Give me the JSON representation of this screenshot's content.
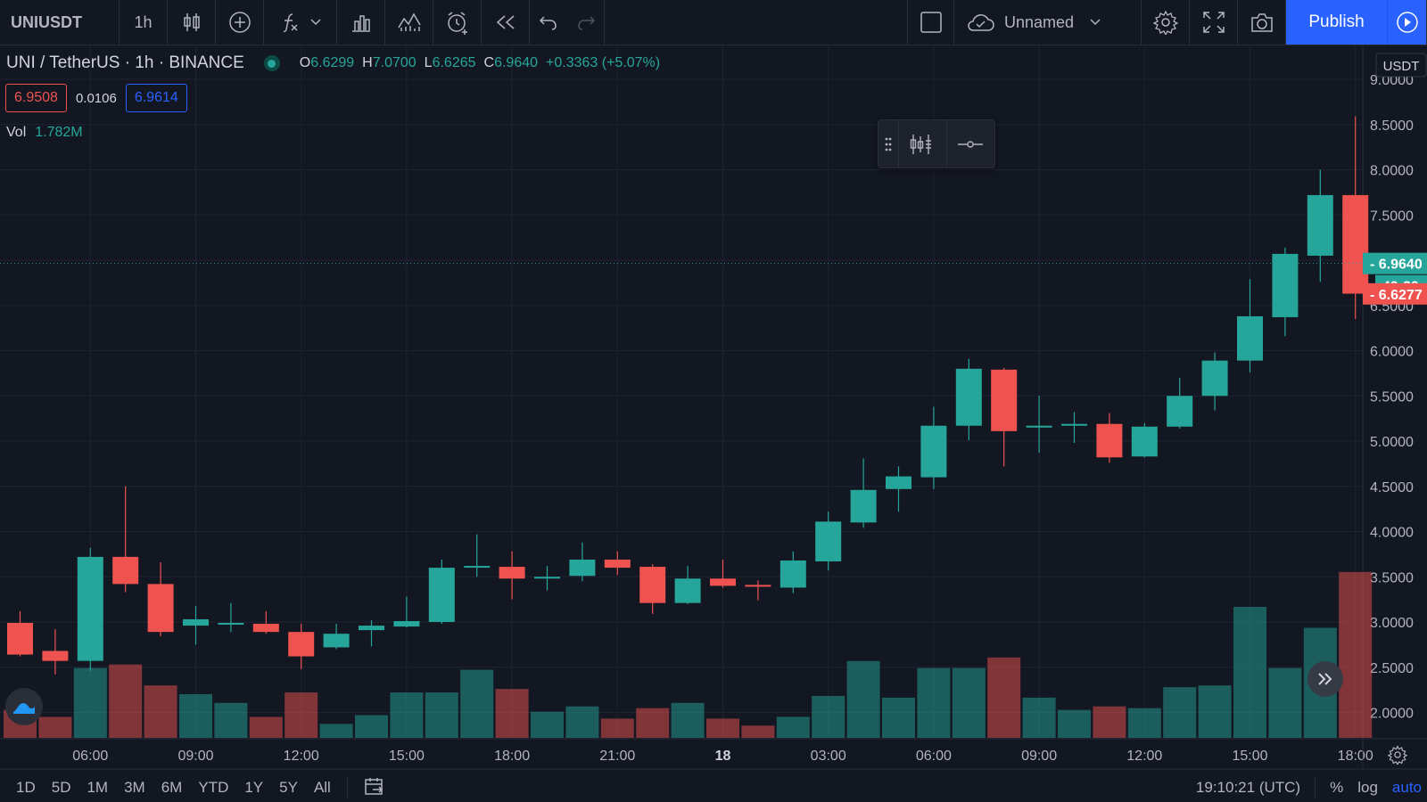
{
  "toolbar": {
    "symbol": "UNIUSDT",
    "interval": "1h",
    "layout_name": "Unnamed",
    "publish_label": "Publish"
  },
  "legend": {
    "title": "UNI / TetherUS · 1h · BINANCE",
    "o_label": "O",
    "o": "6.6299",
    "h_label": "H",
    "h": "7.0700",
    "l_label": "L",
    "l": "6.6265",
    "c_label": "C",
    "c": "6.9640",
    "change": "+0.3363 (+5.07%)",
    "sell_price": "6.9508",
    "spread": "0.0106",
    "buy_price": "6.9614",
    "vol_label": "Vol",
    "vol_value": "1.782M"
  },
  "bottom": {
    "timeframes": [
      "1D",
      "5D",
      "1M",
      "3M",
      "6M",
      "YTD",
      "1Y",
      "5Y",
      "All"
    ],
    "clock": "19:10:21 (UTC)",
    "percent": "%",
    "log": "log",
    "auto": "auto"
  },
  "colors": {
    "up": "#26a69a",
    "down": "#ef5350",
    "background": "#131722",
    "grid": "#1f2330",
    "accent": "#2962ff"
  },
  "chart_data": {
    "type": "candlestick",
    "currency": "USDT",
    "y_ticks": [
      9.0,
      8.5,
      8.0,
      7.5,
      7.0,
      6.5,
      6.0,
      5.5,
      5.0,
      4.5,
      4.0,
      3.5,
      3.0,
      2.5,
      2.0
    ],
    "y_tick_labels": [
      "9.0000",
      "8.5000",
      "8.0000",
      "7.5000",
      "7.0000",
      "6.5000",
      "6.0000",
      "5.5000",
      "5.0000",
      "4.5000",
      "4.0000",
      "3.5000",
      "3.0000",
      "2.5000",
      "2.0000"
    ],
    "x_tick_labels": [
      {
        "index": 2,
        "label": "06:00"
      },
      {
        "index": 5,
        "label": "09:00"
      },
      {
        "index": 8,
        "label": "12:00"
      },
      {
        "index": 11,
        "label": "15:00"
      },
      {
        "index": 14,
        "label": "18:00"
      },
      {
        "index": 17,
        "label": "21:00"
      },
      {
        "index": 20,
        "label": "18"
      },
      {
        "index": 23,
        "label": "03:00"
      },
      {
        "index": 26,
        "label": "06:00"
      },
      {
        "index": 29,
        "label": "09:00"
      },
      {
        "index": 32,
        "label": "12:00"
      },
      {
        "index": 35,
        "label": "15:00"
      },
      {
        "index": 38,
        "label": "18:00"
      }
    ],
    "candles": [
      {
        "o": 2.99,
        "h": 3.12,
        "l": 2.62,
        "c": 2.64
      },
      {
        "o": 2.68,
        "h": 2.92,
        "l": 2.42,
        "c": 2.57
      },
      {
        "o": 2.57,
        "h": 3.82,
        "l": 2.46,
        "c": 3.72
      },
      {
        "o": 3.72,
        "h": 4.5,
        "l": 3.33,
        "c": 3.42
      },
      {
        "o": 3.42,
        "h": 3.66,
        "l": 2.84,
        "c": 2.89
      },
      {
        "o": 2.96,
        "h": 3.18,
        "l": 2.75,
        "c": 3.03
      },
      {
        "o": 2.98,
        "h": 3.21,
        "l": 2.89,
        "c": 2.99
      },
      {
        "o": 2.98,
        "h": 3.12,
        "l": 2.87,
        "c": 2.89
      },
      {
        "o": 2.89,
        "h": 2.98,
        "l": 2.48,
        "c": 2.62
      },
      {
        "o": 2.72,
        "h": 2.98,
        "l": 2.7,
        "c": 2.87
      },
      {
        "o": 2.91,
        "h": 3.02,
        "l": 2.73,
        "c": 2.96
      },
      {
        "o": 2.95,
        "h": 3.28,
        "l": 2.94,
        "c": 3.01
      },
      {
        "o": 3.0,
        "h": 3.69,
        "l": 2.98,
        "c": 3.6
      },
      {
        "o": 3.6,
        "h": 3.97,
        "l": 3.5,
        "c": 3.62
      },
      {
        "o": 3.61,
        "h": 3.78,
        "l": 3.25,
        "c": 3.48
      },
      {
        "o": 3.49,
        "h": 3.62,
        "l": 3.35,
        "c": 3.5
      },
      {
        "o": 3.51,
        "h": 3.88,
        "l": 3.45,
        "c": 3.69
      },
      {
        "o": 3.69,
        "h": 3.78,
        "l": 3.52,
        "c": 3.6
      },
      {
        "o": 3.61,
        "h": 3.64,
        "l": 3.09,
        "c": 3.21
      },
      {
        "o": 3.21,
        "h": 3.62,
        "l": 3.2,
        "c": 3.48
      },
      {
        "o": 3.48,
        "h": 3.69,
        "l": 3.38,
        "c": 3.4
      },
      {
        "o": 3.41,
        "h": 3.46,
        "l": 3.24,
        "c": 3.39
      },
      {
        "o": 3.38,
        "h": 3.78,
        "l": 3.32,
        "c": 3.68
      },
      {
        "o": 3.67,
        "h": 4.22,
        "l": 3.57,
        "c": 4.11
      },
      {
        "o": 4.1,
        "h": 4.81,
        "l": 4.04,
        "c": 4.46
      },
      {
        "o": 4.47,
        "h": 4.72,
        "l": 4.22,
        "c": 4.61
      },
      {
        "o": 4.6,
        "h": 5.38,
        "l": 4.47,
        "c": 5.17
      },
      {
        "o": 5.17,
        "h": 5.91,
        "l": 5.01,
        "c": 5.8
      },
      {
        "o": 5.79,
        "h": 5.81,
        "l": 4.72,
        "c": 5.11
      },
      {
        "o": 5.15,
        "h": 5.5,
        "l": 4.87,
        "c": 5.17
      },
      {
        "o": 5.17,
        "h": 5.32,
        "l": 4.98,
        "c": 5.19
      },
      {
        "o": 5.19,
        "h": 5.31,
        "l": 4.76,
        "c": 4.82
      },
      {
        "o": 4.83,
        "h": 5.2,
        "l": 4.82,
        "c": 5.16
      },
      {
        "o": 5.16,
        "h": 5.7,
        "l": 5.14,
        "c": 5.5
      },
      {
        "o": 5.5,
        "h": 5.98,
        "l": 5.34,
        "c": 5.89
      },
      {
        "o": 5.89,
        "h": 6.79,
        "l": 5.76,
        "c": 6.38
      },
      {
        "o": 6.37,
        "h": 7.14,
        "l": 6.16,
        "c": 7.07
      },
      {
        "o": 7.05,
        "h": 8.0,
        "l": 6.76,
        "c": 7.72
      },
      {
        "o": 7.72,
        "h": 8.59,
        "l": 6.35,
        "c": 6.63
      }
    ],
    "volume_relative": [
      0.16,
      0.12,
      0.4,
      0.42,
      0.3,
      0.25,
      0.2,
      0.12,
      0.26,
      0.08,
      0.13,
      0.26,
      0.26,
      0.39,
      0.28,
      0.15,
      0.18,
      0.11,
      0.17,
      0.2,
      0.11,
      0.07,
      0.12,
      0.24,
      0.44,
      0.23,
      0.4,
      0.4,
      0.46,
      0.23,
      0.16,
      0.18,
      0.17,
      0.29,
      0.3,
      0.75,
      0.4,
      0.63,
      0.95
    ],
    "last_price_label": "6.9640",
    "countdown_label": "49:39",
    "prev_close_label": "6.6277",
    "grid": true
  }
}
